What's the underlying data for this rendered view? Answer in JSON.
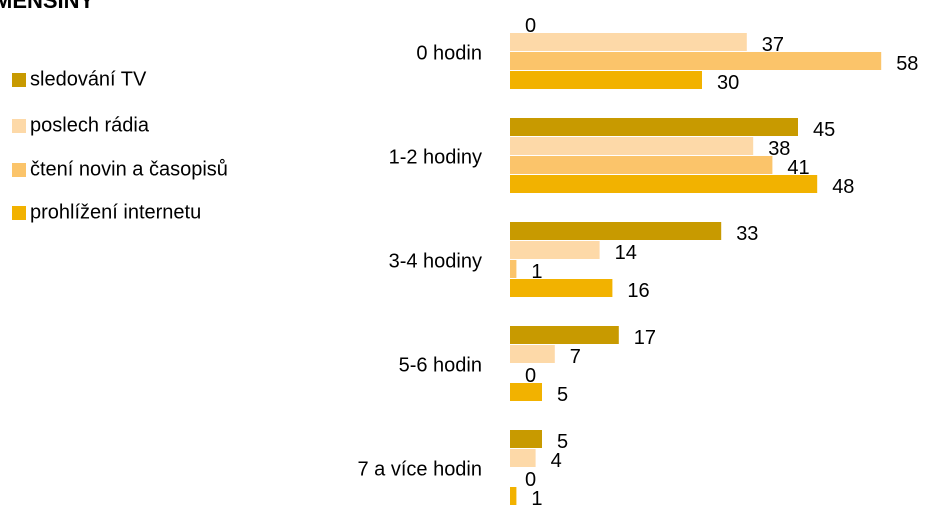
{
  "chart_data": {
    "type": "bar",
    "orientation": "horizontal",
    "title": "MENŠINY",
    "categories": [
      "0 hodin",
      "1-2 hodiny",
      "3-4 hodiny",
      "5-6 hodin",
      "7 a více hodin"
    ],
    "series": [
      {
        "name": "sledování TV",
        "color": "#c89a00",
        "values": [
          0,
          45,
          33,
          17,
          5
        ]
      },
      {
        "name": "poslech rádia",
        "color": "#fdd9a8",
        "values": [
          37,
          38,
          14,
          7,
          4
        ]
      },
      {
        "name": "čtení novin a časopisů",
        "color": "#fbc46a",
        "values": [
          58,
          41,
          1,
          0,
          0
        ]
      },
      {
        "name": "prohlížení internetu",
        "color": "#f2b200",
        "values": [
          30,
          48,
          16,
          5,
          1
        ]
      }
    ],
    "legend": "left"
  }
}
